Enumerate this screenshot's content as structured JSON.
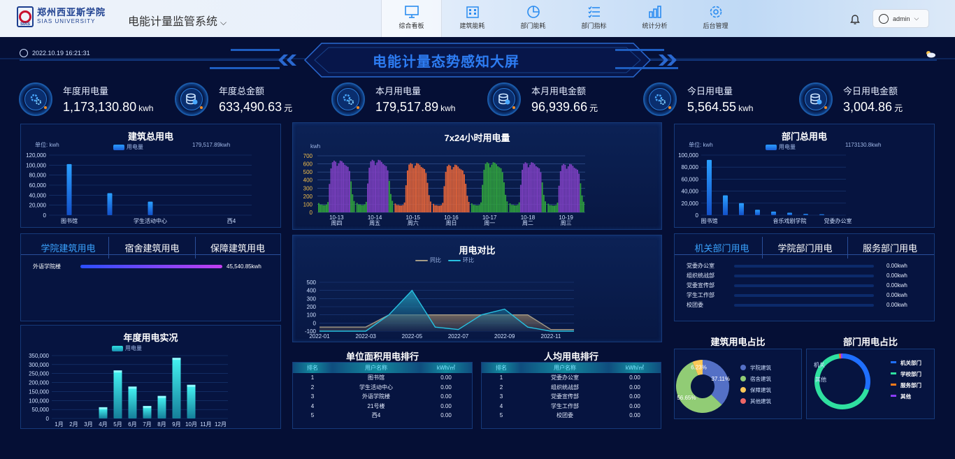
{
  "header": {
    "logo_cn": "郑州西亚斯学院",
    "logo_en": "SIAS UNIVERSITY",
    "logo_badge": "SIAS",
    "system_title": "电能计量监管系统",
    "user": "admin",
    "nav": [
      {
        "label": "综合看板",
        "icon": "monitor-icon"
      },
      {
        "label": "建筑能耗",
        "icon": "building-icon"
      },
      {
        "label": "部门能耗",
        "icon": "pie-icon"
      },
      {
        "label": "部门指标",
        "icon": "list-icon"
      },
      {
        "label": "统计分析",
        "icon": "bar-chart-icon"
      },
      {
        "label": "后台管理",
        "icon": "gear-icon"
      }
    ]
  },
  "screen": {
    "datetime": "2022.10.19 16:21:31",
    "title": "电能计量态势感知大屏"
  },
  "kpis": [
    {
      "label": "年度用电量",
      "value": "1,173,130.80",
      "unit": "kwh"
    },
    {
      "label": "年度总金额",
      "value": "633,490.63",
      "unit": "元"
    },
    {
      "label": "本月用电量",
      "value": "179,517.89",
      "unit": "kwh"
    },
    {
      "label": "本月用电金额",
      "value": "96,939.66",
      "unit": "元"
    },
    {
      "label": "今日用电量",
      "value": "5,564.55",
      "unit": "kwh"
    },
    {
      "label": "今日用电金额",
      "value": "3,004.86",
      "unit": "元"
    }
  ],
  "building_total": {
    "title": "建筑总用电",
    "unit": "单位: kwh",
    "legend": "用电量",
    "total": "179,517.89kwh",
    "chart_data": {
      "type": "bar",
      "categories": [
        "图书馆",
        "",
        "学生活动中心",
        "",
        "西4"
      ],
      "values": [
        102000,
        44000,
        27000,
        0,
        0
      ],
      "ylim": [
        0,
        120000
      ],
      "yticks": [
        "0",
        "20,000",
        "40,000",
        "60,000",
        "80,000",
        "100,000",
        "120,000"
      ],
      "xlabels": [
        "图书馆",
        "学生活动中心",
        "西4"
      ]
    }
  },
  "hourly": {
    "title": "7x24小时用电量",
    "unit": "kwh",
    "yticks": [
      "0",
      "100",
      "200",
      "300",
      "400",
      "500",
      "600",
      "700"
    ],
    "days": [
      {
        "date": "10-13",
        "weekday": "周四",
        "color": "#7b3fbf",
        "peak": 640
      },
      {
        "date": "10-14",
        "weekday": "周五",
        "color": "#7b3fbf",
        "peak": 650
      },
      {
        "date": "10-15",
        "weekday": "周六",
        "color": "#e0633a",
        "peak": 610
      },
      {
        "date": "10-16",
        "weekday": "周日",
        "color": "#e0633a",
        "peak": 590
      },
      {
        "date": "10-17",
        "weekday": "周一",
        "color": "#2f9e3e",
        "peak": 620
      },
      {
        "date": "10-18",
        "weekday": "周二",
        "color": "#7b3fbf",
        "peak": 620
      },
      {
        "date": "10-19",
        "weekday": "周三",
        "color": "#7b3fbf",
        "peak": 600
      }
    ],
    "chart_data": {
      "type": "bar",
      "ylim": [
        0,
        700
      ]
    }
  },
  "building_tabs": [
    "学院建筑用电",
    "宿舍建筑用电",
    "保障建筑用电"
  ],
  "building_progress": [
    {
      "name": "外语学院楼",
      "value": "45,540.85kwh",
      "fraction": 1.0
    }
  ],
  "compare": {
    "title": "用电对比",
    "legend": [
      "同比",
      "环比"
    ],
    "yticks": [
      "-100",
      "0",
      "100",
      "200",
      "300",
      "400",
      "500"
    ],
    "xticks": [
      "2022-01",
      "2022-03",
      "2022-05",
      "2022-07",
      "2022-09",
      "2022-11"
    ],
    "chart_data": {
      "type": "area",
      "x": [
        "2022-01",
        "2022-02",
        "2022-03",
        "2022-04",
        "2022-05",
        "2022-06",
        "2022-07",
        "2022-08",
        "2022-09",
        "2022-10",
        "2022-11",
        "2022-12"
      ],
      "series": [
        {
          "name": "同比",
          "values": [
            -50,
            -50,
            -50,
            100,
            100,
            100,
            100,
            100,
            100,
            100,
            -80,
            -80
          ]
        },
        {
          "name": "环比",
          "values": [
            -100,
            -100,
            -100,
            100,
            400,
            -50,
            -80,
            100,
            170,
            -50,
            -100,
            -100
          ]
        }
      ],
      "ylim": [
        -100,
        500
      ]
    }
  },
  "annual": {
    "title": "年度用电实况",
    "legend": "用电量",
    "yticks": [
      "0",
      "50,000",
      "100,000",
      "150,000",
      "200,000",
      "250,000",
      "300,000",
      "350,000"
    ],
    "chart_data": {
      "type": "bar",
      "categories": [
        "1月",
        "2月",
        "3月",
        "4月",
        "5月",
        "6月",
        "7月",
        "8月",
        "9月",
        "10月",
        "11月",
        "12月"
      ],
      "values": [
        0,
        0,
        0,
        55000,
        260000,
        170000,
        62000,
        118000,
        330000,
        180000,
        0,
        0
      ],
      "ylim": [
        0,
        350000
      ]
    }
  },
  "area_rank": {
    "title": "单位面积用电排行",
    "headers": [
      "排名",
      "用户名称",
      "kWh/㎡"
    ],
    "rows": [
      [
        "1",
        "图书馆",
        "0.00"
      ],
      [
        "2",
        "学生活动中心",
        "0.00"
      ],
      [
        "3",
        "外语学院楼",
        "0.00"
      ],
      [
        "4",
        "21号楼",
        "0.00"
      ],
      [
        "5",
        "西4",
        "0.00"
      ]
    ]
  },
  "capita_rank": {
    "title": "人均用电排行",
    "headers": [
      "排名",
      "用户名称",
      "kWh/㎡"
    ],
    "rows": [
      [
        "1",
        "党委办公室",
        "0.00"
      ],
      [
        "2",
        "组织统战部",
        "0.00"
      ],
      [
        "3",
        "党委宣传部",
        "0.00"
      ],
      [
        "4",
        "学生工作部",
        "0.00"
      ],
      [
        "5",
        "校团委",
        "0.00"
      ]
    ]
  },
  "dept_total": {
    "title": "部门总用电",
    "unit": "单位: kwh",
    "legend": "用电量",
    "total": "1173130.8kwh",
    "chart_data": {
      "type": "bar",
      "categories": [
        "图书馆",
        "",
        "",
        "",
        "",
        "音乐戏剧学院",
        "",
        "",
        "党委办公室"
      ],
      "values": [
        92000,
        33000,
        20000,
        9000,
        6000,
        4000,
        2000,
        1500,
        0
      ],
      "ylim": [
        0,
        100000
      ],
      "yticks": [
        "0",
        "20,000",
        "40,000",
        "60,000",
        "80,000",
        "100,000"
      ],
      "xlabels": [
        "图书馆",
        "音乐戏剧学院",
        "党委办公室"
      ]
    }
  },
  "dept_tabs": [
    "机关部门用电",
    "学院部门用电",
    "服务部门用电"
  ],
  "dept_rows": [
    {
      "name": "党委办公室",
      "value": "0.00kwh"
    },
    {
      "name": "组织统战部",
      "value": "0.00kwh"
    },
    {
      "name": "党委宣传部",
      "value": "0.00kwh"
    },
    {
      "name": "学生工作部",
      "value": "0.00kwh"
    },
    {
      "name": "校团委",
      "value": "0.00kwh"
    }
  ],
  "building_ratio": {
    "title": "建筑用电占比",
    "chart_data": {
      "type": "pie",
      "series": [
        {
          "name": "学院建筑",
          "value": 37.11,
          "label": "37.11%",
          "color": "#5470c6"
        },
        {
          "name": "宿舍建筑",
          "value": 56.65,
          "label": "56.65%",
          "color": "#91cc75"
        },
        {
          "name": "保障建筑",
          "value": 6.23,
          "label": "6.23%",
          "color": "#fac858"
        },
        {
          "name": "其他建筑",
          "value": 0.01,
          "label": "",
          "color": "#ee6666"
        }
      ]
    }
  },
  "dept_ratio": {
    "title": "部门用电占比",
    "labels": [
      "机关",
      "其他"
    ],
    "chart_data": {
      "type": "pie",
      "series": [
        {
          "name": "机关部门",
          "value": 30,
          "color": "#1f6fff"
        },
        {
          "name": "学校部门",
          "value": 68,
          "color": "#2fe0a0"
        },
        {
          "name": "服务部门",
          "value": 1,
          "color": "#ff7a1a"
        },
        {
          "name": "其他",
          "value": 1,
          "color": "#8a3cff"
        }
      ]
    }
  }
}
